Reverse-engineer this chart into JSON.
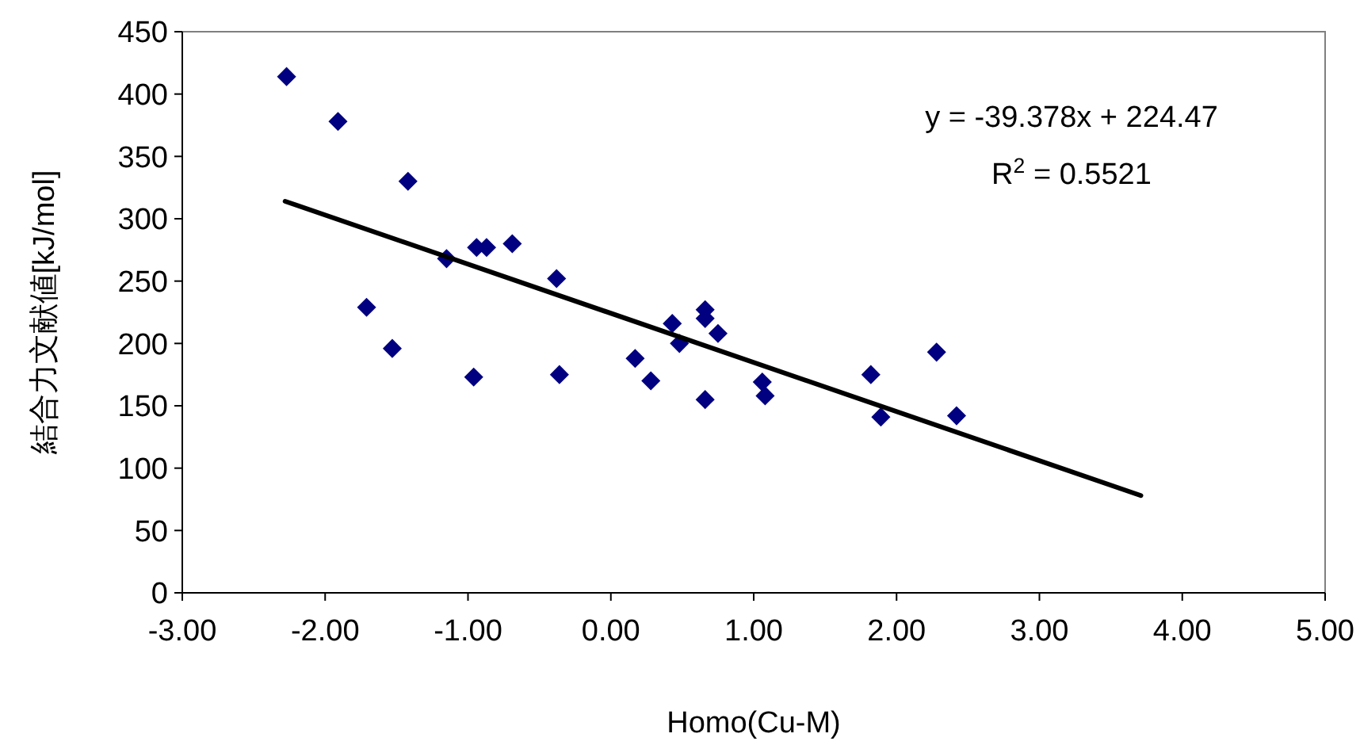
{
  "chart_data": {
    "type": "scatter",
    "xlabel": "Homo(Cu-M)",
    "ylabel": "結合力文献値[kJ/mol]",
    "xlim": [
      -3,
      5
    ],
    "ylim": [
      0,
      450
    ],
    "xticks": [
      {
        "value": -3,
        "label": "-3.00"
      },
      {
        "value": -2,
        "label": "-2.00"
      },
      {
        "value": -1,
        "label": "-1.00"
      },
      {
        "value": 0,
        "label": "0.00"
      },
      {
        "value": 1,
        "label": "1.00"
      },
      {
        "value": 2,
        "label": "2.00"
      },
      {
        "value": 3,
        "label": "3.00"
      },
      {
        "value": 4,
        "label": "4.00"
      },
      {
        "value": 5,
        "label": "5.00"
      }
    ],
    "yticks": [
      0,
      50,
      100,
      150,
      200,
      250,
      300,
      350,
      400,
      450
    ],
    "grid": false,
    "series": [
      {
        "color": "#000080",
        "marker": "diamond",
        "x": [
          -2.27,
          -1.91,
          -1.42,
          -1.71,
          -1.53,
          -0.96,
          -1.15,
          -0.94,
          -0.87,
          -0.69,
          -0.38,
          -0.36,
          0.17,
          0.28,
          0.66,
          0.43,
          0.48,
          0.66,
          0.66,
          0.75,
          1.06,
          1.08,
          1.82,
          1.89,
          2.28,
          2.42
        ],
        "values": [
          414,
          378,
          330,
          229,
          196,
          173,
          268,
          277,
          277,
          280,
          252,
          175,
          188,
          170,
          155,
          216,
          200,
          227,
          220,
          208,
          169,
          158,
          175,
          141,
          193,
          142
        ]
      },
      {
        "type": "line",
        "color": "#000000",
        "marker": "none",
        "line_style": "solid",
        "x": [
          -2.28,
          3.71
        ],
        "values": [
          314,
          78
        ]
      }
    ],
    "annotations": [
      "y = -39.378x + 224.47",
      "R$^{2}$ = 0.5521"
    ]
  }
}
